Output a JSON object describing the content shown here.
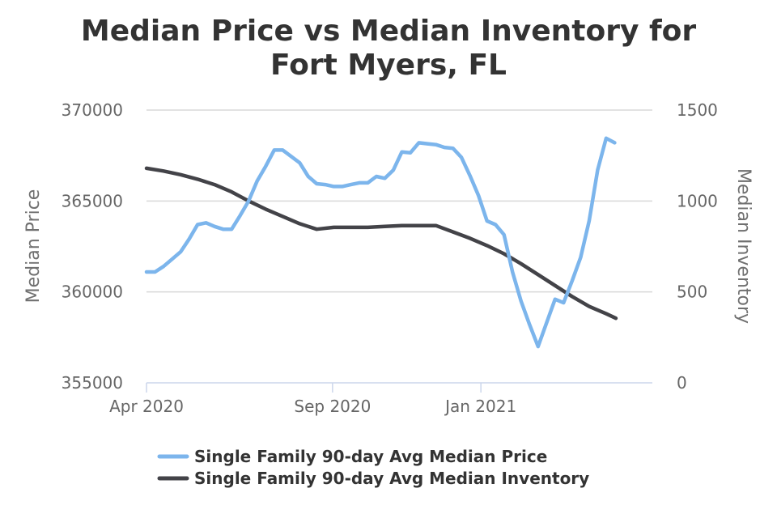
{
  "chart_data": {
    "type": "line",
    "title_line1": "Median Price vs Median Inventory for",
    "title_line2": "Fort Myers, FL",
    "y_left_label": "Median Price",
    "y_right_label": "Median Inventory",
    "y_left_range": [
      355000,
      370000
    ],
    "y_right_range": [
      0,
      1500
    ],
    "y_left_ticks": [
      "355000",
      "360000",
      "365000",
      "370000"
    ],
    "y_right_ticks": [
      "0",
      "500",
      "1000",
      "1500"
    ],
    "x_ticks": [
      {
        "label": "Apr 2020",
        "date": "2020-04-01"
      },
      {
        "label": "Sep 2020",
        "date": "2020-09-01"
      },
      {
        "label": "Jan 2021",
        "date": "2021-01-01"
      }
    ],
    "x_range": [
      "2020-04-01",
      "2021-05-22"
    ],
    "grid": true,
    "legend_position": "bottom",
    "series": [
      {
        "name": "Single Family 90-day Avg Median Price",
        "axis": "left",
        "color": "#7cb5ec",
        "points": [
          [
            "2020-04-01",
            361100
          ],
          [
            "2020-04-08",
            361100
          ],
          [
            "2020-04-15",
            361400
          ],
          [
            "2020-04-22",
            361800
          ],
          [
            "2020-04-29",
            362200
          ],
          [
            "2020-05-06",
            362900
          ],
          [
            "2020-05-13",
            363700
          ],
          [
            "2020-05-20",
            363800
          ],
          [
            "2020-05-27",
            363600
          ],
          [
            "2020-06-03",
            363450
          ],
          [
            "2020-06-10",
            363450
          ],
          [
            "2020-06-17",
            364200
          ],
          [
            "2020-06-24",
            365000
          ],
          [
            "2020-07-01",
            366100
          ],
          [
            "2020-07-08",
            366900
          ],
          [
            "2020-07-15",
            367800
          ],
          [
            "2020-07-22",
            367800
          ],
          [
            "2020-07-29",
            367450
          ],
          [
            "2020-08-05",
            367100
          ],
          [
            "2020-08-12",
            366350
          ],
          [
            "2020-08-19",
            365950
          ],
          [
            "2020-08-26",
            365900
          ],
          [
            "2020-09-02",
            365800
          ],
          [
            "2020-09-09",
            365800
          ],
          [
            "2020-09-16",
            365900
          ],
          [
            "2020-09-23",
            366000
          ],
          [
            "2020-09-30",
            366000
          ],
          [
            "2020-10-07",
            366350
          ],
          [
            "2020-10-14",
            366250
          ],
          [
            "2020-10-21",
            366700
          ],
          [
            "2020-10-28",
            367700
          ],
          [
            "2020-11-04",
            367650
          ],
          [
            "2020-11-11",
            368200
          ],
          [
            "2020-11-18",
            368150
          ],
          [
            "2020-11-25",
            368100
          ],
          [
            "2020-12-02",
            367950
          ],
          [
            "2020-12-09",
            367900
          ],
          [
            "2020-12-16",
            367400
          ],
          [
            "2020-12-23",
            366400
          ],
          [
            "2020-12-30",
            365300
          ],
          [
            "2021-01-06",
            363900
          ],
          [
            "2021-01-13",
            363700
          ],
          [
            "2021-01-20",
            363150
          ],
          [
            "2021-01-27",
            361100
          ],
          [
            "2021-02-03",
            359500
          ],
          [
            "2021-02-10",
            358200
          ],
          [
            "2021-02-17",
            357000
          ],
          [
            "2021-02-24",
            358300
          ],
          [
            "2021-03-03",
            359600
          ],
          [
            "2021-03-10",
            359400
          ],
          [
            "2021-03-17",
            360600
          ],
          [
            "2021-03-24",
            361900
          ],
          [
            "2021-03-31",
            363900
          ],
          [
            "2021-04-07",
            366700
          ],
          [
            "2021-04-14",
            368450
          ],
          [
            "2021-04-21",
            368200
          ]
        ]
      },
      {
        "name": "Single Family 90-day Avg Median Inventory",
        "axis": "right",
        "color": "#434348",
        "points": [
          [
            "2020-04-01",
            1180
          ],
          [
            "2020-04-15",
            1165
          ],
          [
            "2020-04-29",
            1145
          ],
          [
            "2020-05-13",
            1120
          ],
          [
            "2020-05-27",
            1090
          ],
          [
            "2020-06-10",
            1050
          ],
          [
            "2020-06-24",
            1000
          ],
          [
            "2020-07-08",
            955
          ],
          [
            "2020-07-22",
            915
          ],
          [
            "2020-08-05",
            875
          ],
          [
            "2020-08-19",
            845
          ],
          [
            "2020-09-02",
            855
          ],
          [
            "2020-09-16",
            855
          ],
          [
            "2020-09-30",
            855
          ],
          [
            "2020-10-14",
            860
          ],
          [
            "2020-10-28",
            865
          ],
          [
            "2020-11-11",
            865
          ],
          [
            "2020-11-25",
            865
          ],
          [
            "2020-12-09",
            830
          ],
          [
            "2020-12-23",
            795
          ],
          [
            "2021-01-06",
            755
          ],
          [
            "2021-01-20",
            710
          ],
          [
            "2021-02-03",
            655
          ],
          [
            "2021-02-17",
            595
          ],
          [
            "2021-03-03",
            535
          ],
          [
            "2021-03-17",
            475
          ],
          [
            "2021-03-31",
            420
          ],
          [
            "2021-04-14",
            380
          ],
          [
            "2021-04-22",
            355
          ]
        ]
      }
    ]
  }
}
